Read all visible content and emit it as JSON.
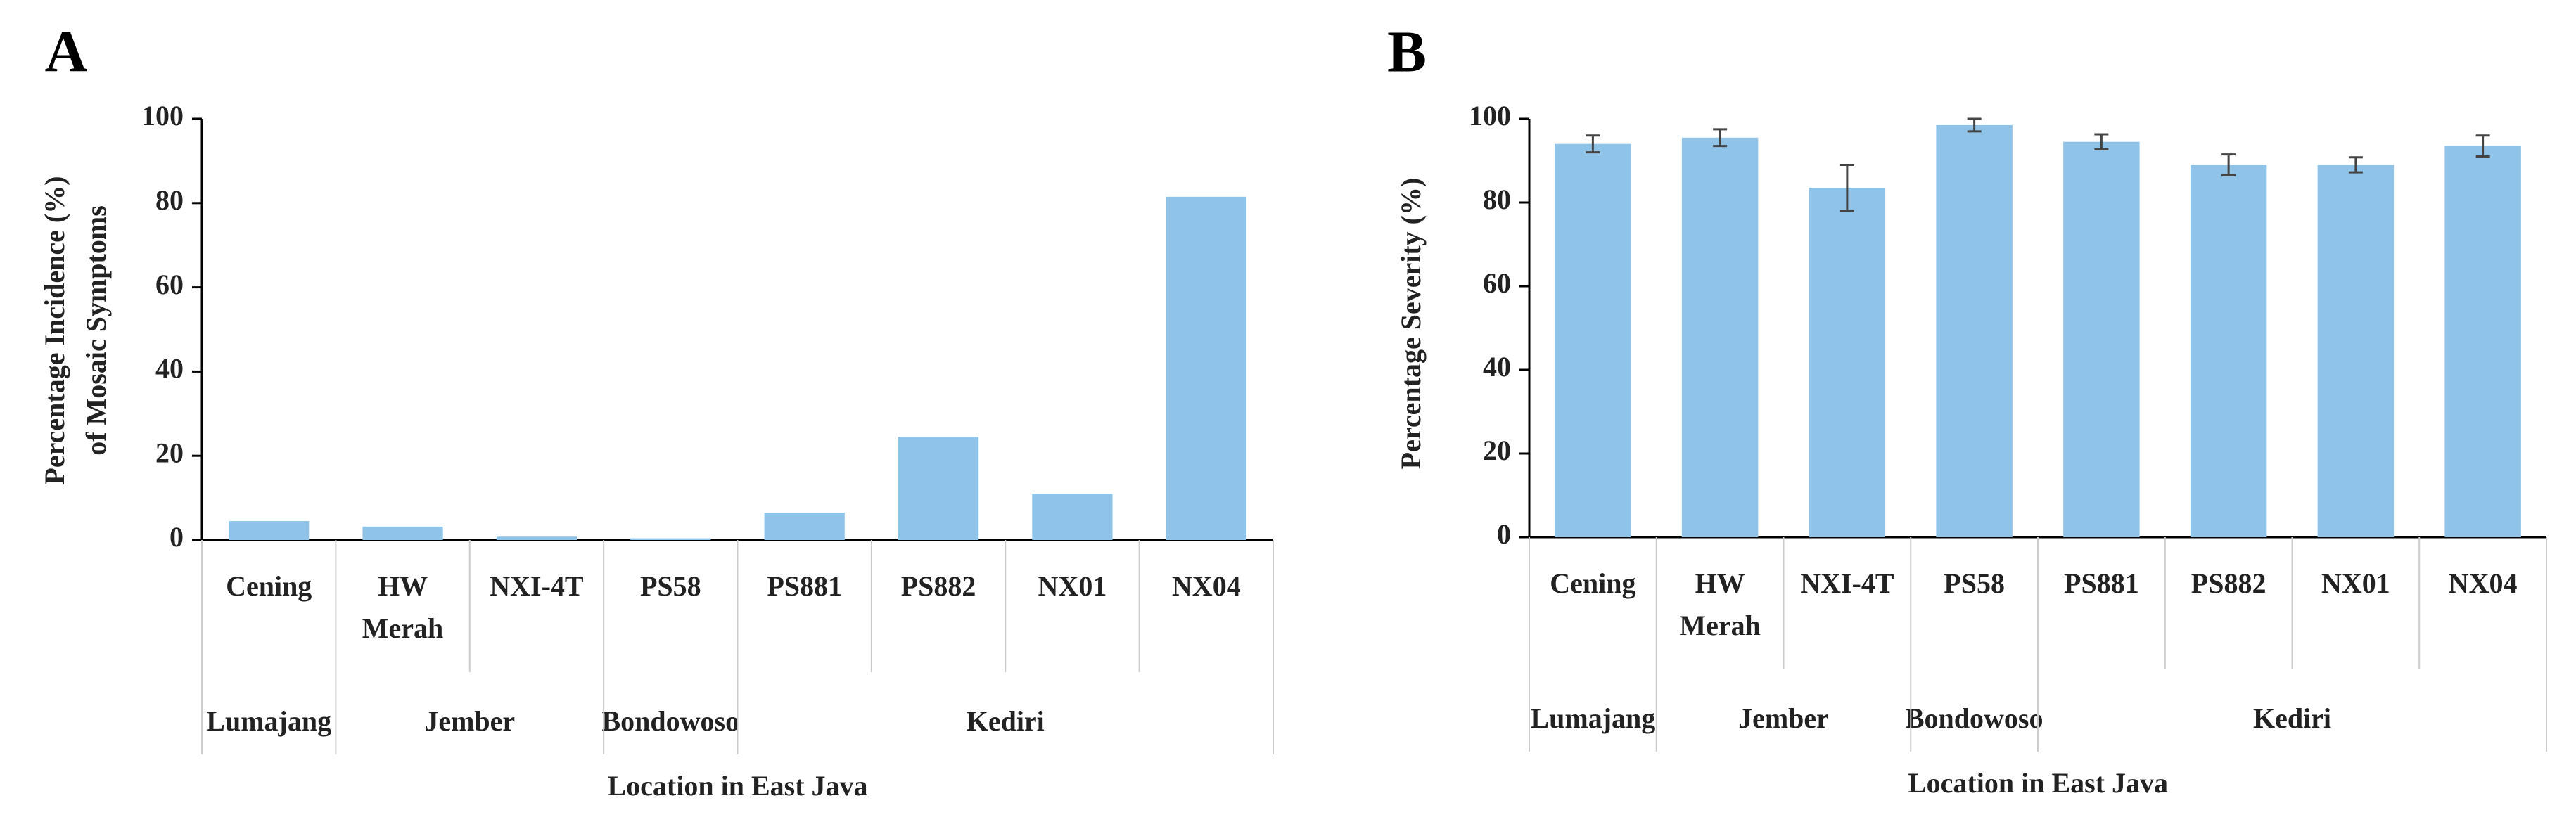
{
  "chart_data": [
    {
      "type": "bar",
      "panel": "A",
      "ylabel": [
        "Percentage Incidence (%)",
        "of  Mosaic Symptoms"
      ],
      "xlabel": "Location in East Java",
      "categories": [
        [
          "Cening"
        ],
        [
          "HW",
          "Merah"
        ],
        [
          "NXI-4T"
        ],
        [
          "PS58"
        ],
        [
          "PS881"
        ],
        [
          "PS882"
        ],
        [
          "NX01"
        ],
        [
          "NX04"
        ]
      ],
      "groups": [
        {
          "name": "Lumajang",
          "size": 1
        },
        {
          "name": "Jember",
          "size": 2
        },
        {
          "name": "Bondowoso",
          "size": 1
        },
        {
          "name": "Kediri",
          "size": 4
        }
      ],
      "values": [
        4.5,
        3.2,
        0.8,
        0.4,
        6.5,
        24.5,
        11,
        81.5
      ],
      "color": "#8fc3e8",
      "ylim": [
        0,
        100
      ],
      "yticks": [
        0,
        20,
        40,
        60,
        80,
        100
      ]
    },
    {
      "type": "bar",
      "panel": "B",
      "ylabel": [
        "Percentage Severity  (%)"
      ],
      "xlabel": "Location in East Java",
      "categories": [
        [
          "Cening"
        ],
        [
          "HW",
          "Merah"
        ],
        [
          "NXI-4T"
        ],
        [
          "PS58"
        ],
        [
          "PS881"
        ],
        [
          "PS882"
        ],
        [
          "NX01"
        ],
        [
          "NX04"
        ]
      ],
      "groups": [
        {
          "name": "Lumajang",
          "size": 1
        },
        {
          "name": "Jember",
          "size": 2
        },
        {
          "name": "Bondowoso",
          "size": 1
        },
        {
          "name": "Kediri",
          "size": 4
        }
      ],
      "values": [
        94,
        95.5,
        83.5,
        98.5,
        94.5,
        89,
        89,
        93.5
      ],
      "errors": [
        2,
        2,
        5.5,
        1.5,
        1.8,
        2.5,
        1.8,
        2.5
      ],
      "color": "#8fc3e8",
      "ylim": [
        0,
        100
      ],
      "yticks": [
        0,
        20,
        40,
        60,
        80,
        100
      ]
    }
  ]
}
